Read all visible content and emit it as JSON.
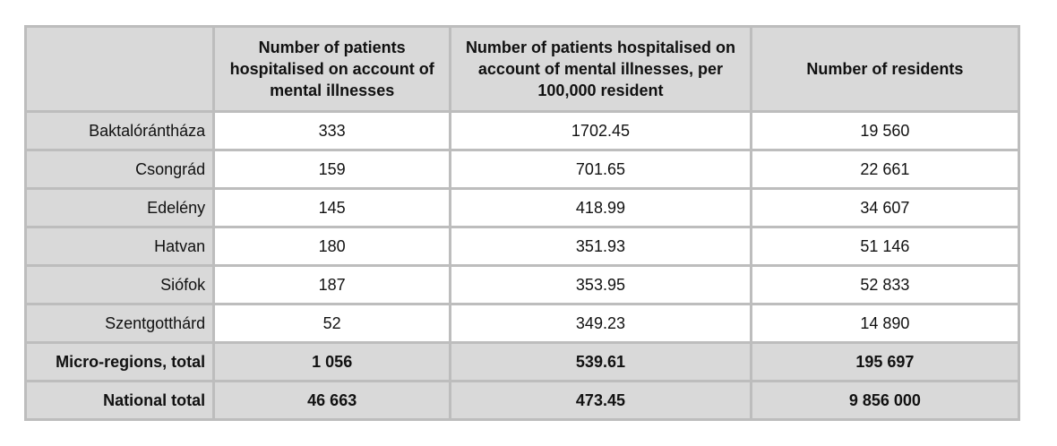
{
  "table": {
    "headers": [
      "",
      "Number of patients hospitalised on account of mental illnesses",
      "Number of patients hospitalised on account of mental illnesses, per 100,000 resident",
      "Number of residents"
    ],
    "rows": [
      {
        "region": "Baktalórántháza",
        "patients": "333",
        "per_100k": "1702.45",
        "residents": "19 560"
      },
      {
        "region": "Csongrád",
        "patients": "159",
        "per_100k": "701.65",
        "residents": "22 661"
      },
      {
        "region": "Edelény",
        "patients": "145",
        "per_100k": "418.99",
        "residents": "34 607"
      },
      {
        "region": "Hatvan",
        "patients": "180",
        "per_100k": "351.93",
        "residents": "51 146"
      },
      {
        "region": "Siófok",
        "patients": "187",
        "per_100k": "353.95",
        "residents": "52 833"
      },
      {
        "region": "Szentgotthárd",
        "patients": "52",
        "per_100k": "349.23",
        "residents": "14 890"
      }
    ],
    "totals": [
      {
        "region": "Micro-regions, total",
        "patients": "1 056",
        "per_100k": "539.61",
        "residents": "195 697"
      },
      {
        "region": "National total",
        "patients": "46 663",
        "per_100k": "473.45",
        "residents": "9 856 000"
      }
    ]
  },
  "colors": {
    "header_bg": "#d9d9d9",
    "grid_line": "#bdbdbd",
    "cell_bg": "#ffffff"
  }
}
